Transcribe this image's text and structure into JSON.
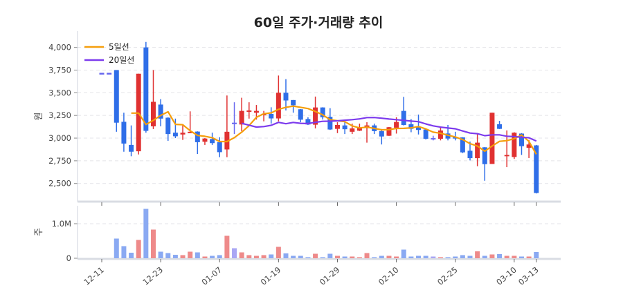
{
  "chart_data": [
    {
      "type": "candlestick",
      "title": "60일 주가·거래량 추이",
      "ylabel": "원",
      "ylim": [
        2300,
        4180
      ],
      "grid": true,
      "legend_position": "top-left",
      "y_ticks": [
        "4,000",
        "3,750",
        "3,500",
        "3,250",
        "3,000",
        "2,750",
        "2,500"
      ],
      "y_tick_values": [
        4000,
        3750,
        3500,
        3250,
        3000,
        2750,
        2500
      ],
      "x_ticks": [
        {
          "index": 0,
          "label": "12-11"
        },
        {
          "index": 8,
          "label": "12-23"
        },
        {
          "index": 16,
          "label": "01-07"
        },
        {
          "index": 24,
          "label": "01-19"
        },
        {
          "index": 32,
          "label": "01-29"
        },
        {
          "index": 40,
          "label": "02-10"
        },
        {
          "index": 48,
          "label": "02-25"
        },
        {
          "index": 56,
          "label": "03-10"
        },
        {
          "index": 59,
          "label": "03-13"
        }
      ],
      "ohlc": [
        [
          3710,
          3710,
          3710,
          3710
        ],
        [
          3710,
          3710,
          3710,
          3710
        ],
        [
          3750,
          3750,
          3070,
          3170
        ],
        [
          3180,
          3280,
          2850,
          2940
        ],
        [
          2925,
          3140,
          2800,
          2850
        ],
        [
          2855,
          3710,
          2820,
          3710
        ],
        [
          4000,
          4060,
          3060,
          3080
        ],
        [
          3130,
          3750,
          3100,
          3400
        ],
        [
          3370,
          3430,
          3130,
          3215
        ],
        [
          3225,
          3230,
          2970,
          3045
        ],
        [
          3060,
          3215,
          3000,
          3020
        ],
        [
          3040,
          3145,
          2980,
          3060
        ],
        [
          3060,
          3295,
          3055,
          3070
        ],
        [
          3072,
          3075,
          2825,
          2955
        ],
        [
          2960,
          3000,
          2925,
          2995
        ],
        [
          2990,
          3060,
          2925,
          2945
        ],
        [
          2955,
          3010,
          2790,
          2845
        ],
        [
          2875,
          3470,
          2790,
          3070
        ],
        [
          3170,
          3395,
          3045,
          3170
        ],
        [
          3150,
          3445,
          3075,
          3300
        ],
        [
          3290,
          3395,
          3215,
          3305
        ],
        [
          3280,
          3365,
          3205,
          3300
        ],
        [
          3255,
          3300,
          3185,
          3268
        ],
        [
          3267,
          3340,
          3160,
          3217
        ],
        [
          3217,
          3690,
          3185,
          3500
        ],
        [
          3500,
          3650,
          3305,
          3415
        ],
        [
          3420,
          3420,
          3280,
          3362
        ],
        [
          3318,
          3320,
          3175,
          3203
        ],
        [
          3210,
          3230,
          3145,
          3150
        ],
        [
          3148,
          3458,
          3107,
          3338
        ],
        [
          3338,
          3340,
          3205,
          3230
        ],
        [
          3235,
          3330,
          3090,
          3095
        ],
        [
          3102,
          3175,
          3055,
          3145
        ],
        [
          3140,
          3175,
          3045,
          3098
        ],
        [
          3070,
          3160,
          3045,
          3107
        ],
        [
          3082,
          3160,
          3078,
          3115
        ],
        [
          3110,
          3175,
          2950,
          3140
        ],
        [
          3140,
          3160,
          3045,
          3077
        ],
        [
          3077,
          3100,
          2930,
          3018
        ],
        [
          3026,
          3122,
          3024,
          3120
        ],
        [
          3115,
          3230,
          3050,
          3178
        ],
        [
          3300,
          3455,
          3140,
          3145
        ],
        [
          3153,
          3210,
          3065,
          3102
        ],
        [
          3122,
          3260,
          3040,
          3090
        ],
        [
          3095,
          3097,
          2985,
          2993
        ],
        [
          3000,
          3026,
          2975,
          3000
        ],
        [
          2993,
          3115,
          2975,
          3084
        ],
        [
          3051,
          3145,
          2975,
          2995
        ],
        [
          3013,
          3070,
          2975,
          2995
        ],
        [
          3008,
          3010,
          2835,
          2843
        ],
        [
          2861,
          2962,
          2754,
          2779
        ],
        [
          2779,
          3046,
          2690,
          2950
        ],
        [
          2899,
          2900,
          2530,
          2713
        ],
        [
          2715,
          3280,
          2715,
          3280
        ],
        [
          3153,
          3190,
          3100,
          3102
        ],
        [
          2810,
          3085,
          2680,
          2815
        ],
        [
          2792,
          3065,
          2770,
          3060
        ],
        [
          3050,
          3055,
          2815,
          2911
        ],
        [
          2894,
          2980,
          2780,
          2930
        ],
        [
          2920,
          2925,
          2390,
          2395
        ]
      ],
      "moving_averages": [
        {
          "name": "5일선",
          "window": 5,
          "color": "#f59e0b"
        },
        {
          "name": "20일선",
          "window": 20,
          "color": "#7c3aed"
        }
      ],
      "colors": {
        "up": "#e03131",
        "down": "#2f6ee8",
        "flat": "#6666ee"
      }
    },
    {
      "type": "bar",
      "ylabel": "주",
      "ylim": [
        0,
        1520000
      ],
      "y_ticks": [
        "1.0M",
        "0"
      ],
      "y_tick_values": [
        1000000,
        0
      ],
      "volume": [
        0,
        0,
        570000,
        350000,
        160000,
        530000,
        1430000,
        830000,
        190000,
        150000,
        100000,
        90000,
        190000,
        170000,
        50000,
        70000,
        90000,
        650000,
        290000,
        170000,
        90000,
        70000,
        90000,
        110000,
        330000,
        140000,
        70000,
        70000,
        30000,
        130000,
        30000,
        130000,
        70000,
        50000,
        50000,
        30000,
        150000,
        30000,
        70000,
        70000,
        50000,
        250000,
        50000,
        70000,
        70000,
        50000,
        30000,
        30000,
        50000,
        90000,
        70000,
        200000,
        70000,
        110000,
        120000,
        70000,
        70000,
        50000,
        50000,
        180000
      ],
      "colors": {
        "up": "#ee8a8a",
        "down": "#8aa9f2",
        "flat": "#a9a6f4"
      }
    }
  ]
}
